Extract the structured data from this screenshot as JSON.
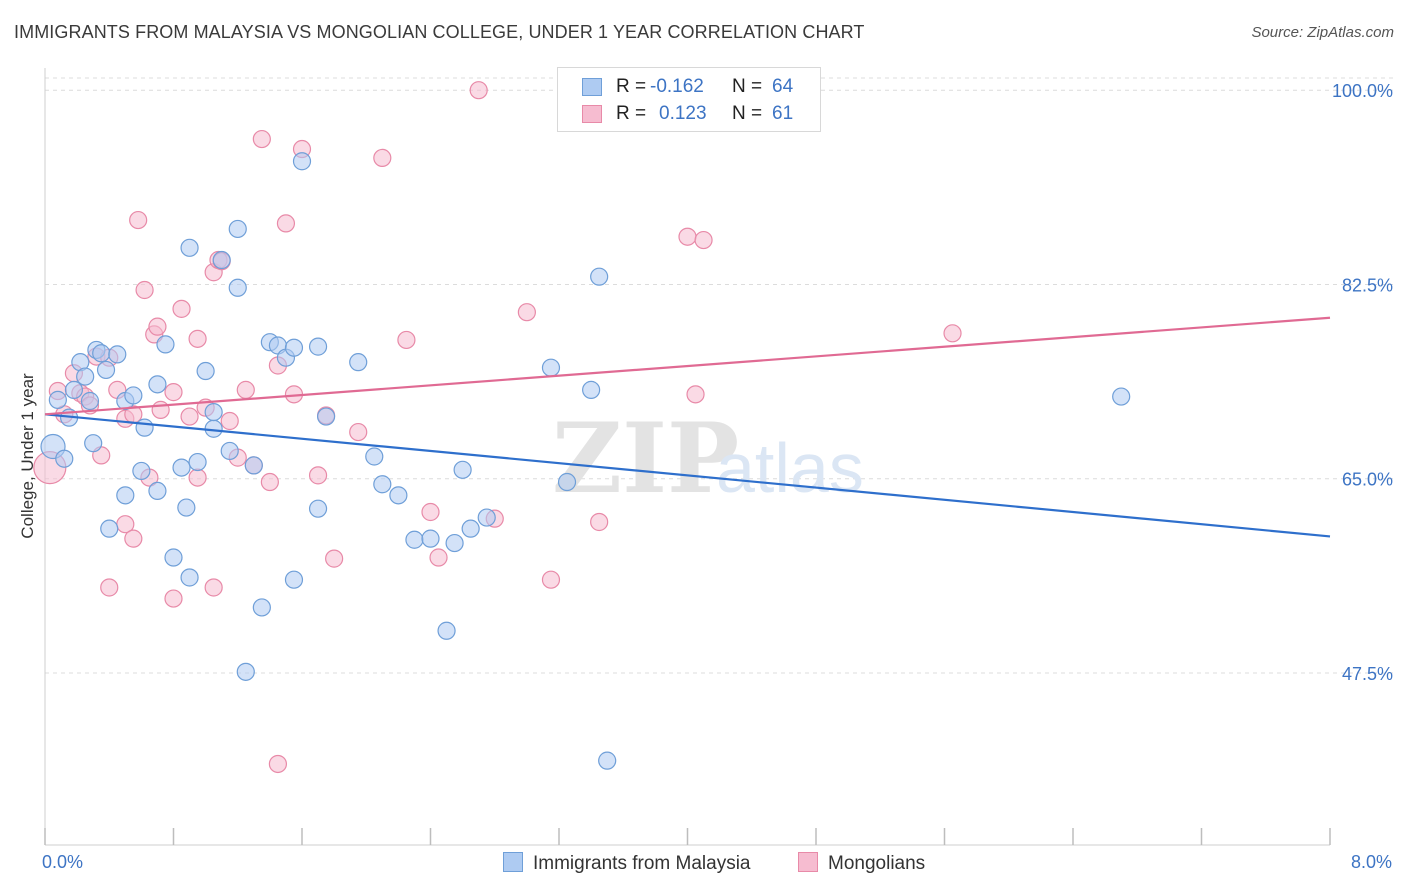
{
  "title": "IMMIGRANTS FROM MALAYSIA VS MONGOLIAN COLLEGE, UNDER 1 YEAR CORRELATION CHART",
  "source": "Source: ZipAtlas.com",
  "watermark": {
    "zip": "ZIP",
    "atlas": "atlas"
  },
  "colors": {
    "blue_fill": "#aecbf2",
    "blue_stroke": "#6f9fd8",
    "blue_line": "#2e6fcc",
    "pink_fill": "#f6bcd0",
    "pink_stroke": "#e88aa8",
    "pink_line": "#e06a93",
    "tick_text": "#3d74c4",
    "grid": "#dcdcdc"
  },
  "legend_top": {
    "rows": [
      {
        "swatch": "blue",
        "r_label": "R =",
        "r_value": "-0.162",
        "n_label": "N =",
        "n_value": "64"
      },
      {
        "swatch": "pink",
        "r_label": "R =",
        "r_value": "0.123",
        "n_label": "N =",
        "n_value": "61"
      }
    ]
  },
  "legend_bottom": {
    "series1": "Immigrants from Malaysia",
    "series2": "Mongolians"
  },
  "chart_data": {
    "type": "scatter",
    "title": "IMMIGRANTS FROM MALAYSIA VS MONGOLIAN COLLEGE, UNDER 1 YEAR CORRELATION CHART",
    "xlabel": "",
    "ylabel": "College, Under 1 year",
    "xlim": [
      0.0,
      8.0
    ],
    "ylim": [
      32.0,
      102.0
    ],
    "x_tick_labels": [
      "0.0%",
      "8.0%"
    ],
    "y_ticks": [
      47.5,
      65.0,
      82.5,
      100.0
    ],
    "y_tick_labels": [
      "47.5%",
      "65.0%",
      "82.5%",
      "100.0%"
    ],
    "grid": true,
    "legend_position": "top-center",
    "series": [
      {
        "name": "Immigrants from Malaysia",
        "color": "#aecbf2",
        "trend": {
          "x": [
            0.0,
            8.0
          ],
          "y": [
            70.8,
            59.8
          ]
        },
        "points": [
          [
            0.05,
            67.9
          ],
          [
            0.08,
            72.1
          ],
          [
            0.12,
            66.8
          ],
          [
            0.15,
            70.5
          ],
          [
            0.18,
            73.0
          ],
          [
            0.22,
            75.5
          ],
          [
            0.25,
            74.2
          ],
          [
            0.28,
            72.0
          ],
          [
            0.32,
            76.6
          ],
          [
            0.35,
            76.3
          ],
          [
            0.38,
            74.8
          ],
          [
            0.45,
            76.2
          ],
          [
            0.5,
            72.0
          ],
          [
            0.55,
            72.5
          ],
          [
            0.62,
            69.6
          ],
          [
            0.7,
            73.5
          ],
          [
            0.75,
            77.1
          ],
          [
            0.85,
            66.0
          ],
          [
            0.9,
            85.8
          ],
          [
            0.95,
            66.5
          ],
          [
            1.0,
            74.7
          ],
          [
            1.05,
            69.5
          ],
          [
            1.1,
            84.7
          ],
          [
            1.15,
            67.5
          ],
          [
            1.2,
            82.2
          ],
          [
            1.2,
            87.5
          ],
          [
            1.3,
            66.2
          ],
          [
            1.4,
            77.3
          ],
          [
            1.45,
            77.0
          ],
          [
            1.5,
            75.9
          ],
          [
            1.55,
            76.8
          ],
          [
            1.6,
            93.6
          ],
          [
            1.7,
            76.9
          ],
          [
            1.75,
            70.6
          ],
          [
            1.95,
            75.5
          ],
          [
            2.05,
            67.0
          ],
          [
            2.1,
            64.5
          ],
          [
            2.2,
            63.5
          ],
          [
            2.3,
            59.5
          ],
          [
            2.4,
            59.6
          ],
          [
            2.5,
            51.3
          ],
          [
            2.55,
            59.2
          ],
          [
            2.6,
            65.8
          ],
          [
            2.65,
            60.5
          ],
          [
            2.75,
            61.5
          ],
          [
            3.15,
            75.0
          ],
          [
            3.25,
            64.7
          ],
          [
            3.4,
            73.0
          ],
          [
            3.45,
            83.2
          ],
          [
            3.5,
            39.6
          ],
          [
            0.3,
            68.2
          ],
          [
            0.4,
            60.5
          ],
          [
            0.5,
            63.5
          ],
          [
            0.6,
            65.7
          ],
          [
            0.7,
            63.9
          ],
          [
            0.8,
            57.9
          ],
          [
            0.88,
            62.4
          ],
          [
            1.05,
            71.0
          ],
          [
            1.25,
            47.6
          ],
          [
            1.35,
            53.4
          ],
          [
            1.55,
            55.9
          ],
          [
            1.7,
            62.3
          ],
          [
            0.9,
            56.1
          ],
          [
            6.7,
            72.4
          ]
        ]
      },
      {
        "name": "Mongolians",
        "color": "#f6bcd0",
        "trend": {
          "x": [
            0.0,
            8.0
          ],
          "y": [
            70.8,
            79.5
          ]
        },
        "points": [
          [
            0.03,
            66.0
          ],
          [
            0.08,
            72.9
          ],
          [
            0.12,
            70.8
          ],
          [
            0.18,
            74.5
          ],
          [
            0.22,
            72.7
          ],
          [
            0.25,
            72.4
          ],
          [
            0.28,
            71.6
          ],
          [
            0.32,
            76.0
          ],
          [
            0.35,
            67.1
          ],
          [
            0.4,
            75.9
          ],
          [
            0.45,
            73.0
          ],
          [
            0.5,
            70.4
          ],
          [
            0.55,
            70.8
          ],
          [
            0.58,
            88.3
          ],
          [
            0.62,
            82.0
          ],
          [
            0.68,
            78.0
          ],
          [
            0.7,
            78.7
          ],
          [
            0.72,
            71.2
          ],
          [
            0.8,
            72.8
          ],
          [
            0.85,
            80.3
          ],
          [
            0.9,
            70.6
          ],
          [
            0.95,
            77.6
          ],
          [
            1.0,
            71.4
          ],
          [
            1.05,
            83.6
          ],
          [
            1.08,
            84.7
          ],
          [
            1.1,
            84.6
          ],
          [
            1.15,
            70.2
          ],
          [
            1.2,
            66.9
          ],
          [
            1.25,
            73.0
          ],
          [
            1.3,
            66.2
          ],
          [
            1.35,
            95.6
          ],
          [
            1.4,
            64.7
          ],
          [
            1.45,
            75.2
          ],
          [
            1.5,
            88.0
          ],
          [
            1.55,
            72.6
          ],
          [
            1.6,
            94.7
          ],
          [
            1.7,
            65.3
          ],
          [
            1.75,
            70.7
          ],
          [
            1.8,
            57.8
          ],
          [
            1.95,
            69.2
          ],
          [
            2.1,
            93.9
          ],
          [
            2.25,
            77.5
          ],
          [
            2.4,
            62.0
          ],
          [
            2.45,
            57.9
          ],
          [
            2.7,
            100.0
          ],
          [
            2.8,
            61.4
          ],
          [
            3.0,
            80.0
          ],
          [
            3.15,
            55.9
          ],
          [
            3.45,
            61.1
          ],
          [
            4.0,
            86.8
          ],
          [
            4.1,
            86.5
          ],
          [
            4.05,
            72.6
          ],
          [
            5.65,
            78.1
          ],
          [
            0.4,
            55.2
          ],
          [
            0.5,
            60.9
          ],
          [
            0.55,
            59.6
          ],
          [
            0.65,
            65.1
          ],
          [
            0.8,
            54.2
          ],
          [
            0.95,
            65.1
          ],
          [
            1.05,
            55.2
          ],
          [
            1.45,
            39.3
          ]
        ]
      }
    ]
  }
}
